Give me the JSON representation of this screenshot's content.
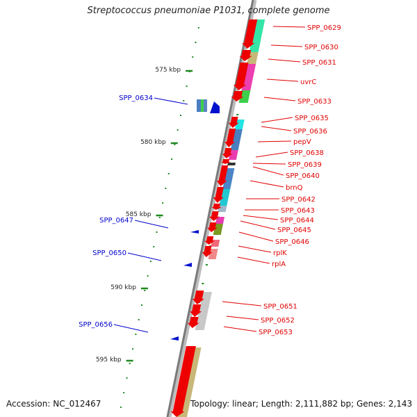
{
  "title": "Streptococcus pneumoniae P1031, complete genome",
  "footer": {
    "accession": "Accession: NC_012467",
    "topology": "Topology: linear; Length: 2,111,882 bp; Genes: 2,143"
  },
  "colors": {
    "backbone": "#8a8a8a",
    "tick": "#1e8a1e",
    "gene_label": "#e00000",
    "blue_label": "#0000cc",
    "forward_arrow": "#ee0000"
  },
  "kbp_labels": [
    "575 kbp",
    "580 kbp",
    "585 kbp",
    "590 kbp",
    "595 kbp"
  ],
  "right_labels": [
    "SPP_0629",
    "SPP_0630",
    "SPP_0631",
    "uvrC",
    "SPP_0633",
    "SPP_0635",
    "SPP_0636",
    "pepV",
    "SPP_0638",
    "SPP_0639",
    "SPP_0640",
    "brnQ",
    "SPP_0642",
    "SPP_0643",
    "SPP_0644",
    "SPP_0645",
    "SPP_0646",
    "rplK",
    "rplA",
    "SPP_0651",
    "SPP_0652",
    "SPP_0653"
  ],
  "left_labels": [
    "SPP_0634",
    "SPP_0647",
    "SPP_0650",
    "SPP_0656"
  ]
}
